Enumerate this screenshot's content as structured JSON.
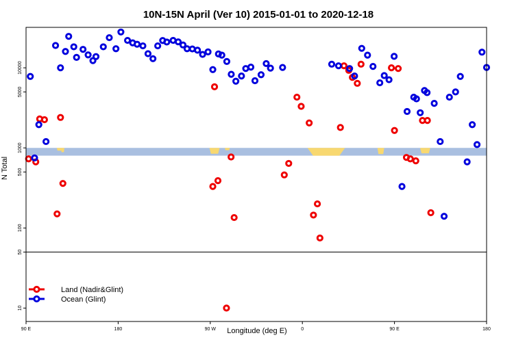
{
  "chart_data": {
    "type": "scatter",
    "title": "10N-15N April (Ver 10)   2015-01-01 to 2020-12-18",
    "xlabel": "Longitude (deg E)",
    "ylabel": "N Total",
    "y_scale": "log",
    "ylim": [
      6.8,
      32000
    ],
    "xlim": [
      0,
      270
    ],
    "x_ticks": [
      {
        "value": 0,
        "label": "90 E"
      },
      {
        "value": 54,
        "label": "180"
      },
      {
        "value": 108,
        "label": "90 W"
      },
      {
        "value": 162,
        "label": "0"
      },
      {
        "value": 216,
        "label": "90 E"
      },
      {
        "value": 270,
        "label": "180"
      }
    ],
    "y_ticks": [
      10,
      50,
      100,
      500,
      1000,
      5000,
      10000
    ],
    "reference_line_y": 50,
    "land_band": {
      "from": 800,
      "to": 1000
    },
    "land_bumps": [
      {
        "center": 19.5,
        "width": 3,
        "depth": 0.35
      },
      {
        "center": 21.5,
        "width": 2,
        "depth": 0.55
      },
      {
        "center": 110.5,
        "width": 6,
        "depth": 0.75
      },
      {
        "center": 118,
        "width": 3,
        "depth": 0.3
      },
      {
        "center": 176,
        "width": 22,
        "depth": 1.0
      },
      {
        "center": 208,
        "width": 4,
        "depth": 0.8
      },
      {
        "center": 234,
        "width": 6,
        "depth": 0.7
      }
    ],
    "legend": {
      "position": "bottom-left"
    },
    "colors": {
      "land": "#ee0000",
      "ocean": "#0000dd",
      "band": "#a9bfe0",
      "continent": "#f8d870"
    },
    "series": [
      {
        "name": "Land (Nadir&Glint)",
        "key": "land",
        "x": [
          1.5,
          5.7,
          8,
          10.8,
          18.2,
          20.2,
          21.6,
          109.5,
          110.5,
          112.5,
          117.5,
          120.2,
          122,
          151.4,
          154,
          158.8,
          161.3,
          166,
          168.5,
          170.8,
          172.3,
          184.3,
          186.4,
          189.2,
          191.3,
          194.2,
          196.4,
          214.2,
          216,
          218.2,
          223,
          225.3,
          228.5,
          232.4,
          235.3,
          237.3
        ],
        "y": [
          730,
          670,
          2300,
          2250,
          150,
          2400,
          360,
          330,
          5800,
          390,
          10,
          770,
          135,
          460,
          640,
          4300,
          3300,
          2050,
          145,
          200,
          75,
          1800,
          10600,
          9300,
          7600,
          6400,
          11100,
          10000,
          1650,
          9800,
          760,
          730,
          690,
          2200,
          2200,
          155
        ]
      },
      {
        "name": "Ocean (Glint)",
        "key": "ocean",
        "x": [
          2.5,
          5,
          7.5,
          11.7,
          17.3,
          20.2,
          23.1,
          25,
          28,
          29.6,
          33.4,
          36.4,
          39.2,
          41,
          45.3,
          48.8,
          52.7,
          55.6,
          59.5,
          62.5,
          65.1,
          68.5,
          71.5,
          74.4,
          77.2,
          80.1,
          82.5,
          86.2,
          89.2,
          92,
          94.4,
          97.5,
          100.5,
          103.5,
          106.7,
          109.5,
          112.8,
          114.8,
          117.7,
          120.3,
          123,
          126.3,
          128.8,
          131.8,
          134.2,
          137.8,
          140.8,
          143.3,
          150.4,
          179.2,
          183.2,
          189.7,
          192.6,
          196.8,
          200.2,
          203.4,
          207.4,
          210,
          212.8,
          215.8,
          220.4,
          223.4,
          227.3,
          228.9,
          231.1,
          233.6,
          235.1,
          239.3,
          242.8,
          245.1,
          248.2,
          251.8,
          254.6,
          258.6,
          261.6,
          264.4,
          267.3,
          270.5
        ],
        "y": [
          7800,
          750,
          1950,
          1200,
          19000,
          10000,
          16000,
          24700,
          18300,
          13500,
          17000,
          14500,
          12300,
          13800,
          18300,
          23800,
          17300,
          28000,
          22000,
          20500,
          19700,
          18800,
          15000,
          13000,
          18800,
          21900,
          21000,
          22000,
          21100,
          19300,
          17300,
          17200,
          16600,
          14700,
          15800,
          9500,
          14900,
          14400,
          12000,
          8300,
          6800,
          7900,
          9800,
          10200,
          6900,
          8200,
          11300,
          9900,
          10100,
          11100,
          10600,
          9800,
          7900,
          17500,
          14400,
          10400,
          6500,
          8000,
          7100,
          13900,
          330,
          2850,
          4300,
          4100,
          2750,
          5200,
          4900,
          3600,
          1200,
          140,
          4300,
          5000,
          7800,
          670,
          1950,
          1100,
          15700,
          10100
        ],
        "x2": [],
        "y2": []
      }
    ]
  }
}
